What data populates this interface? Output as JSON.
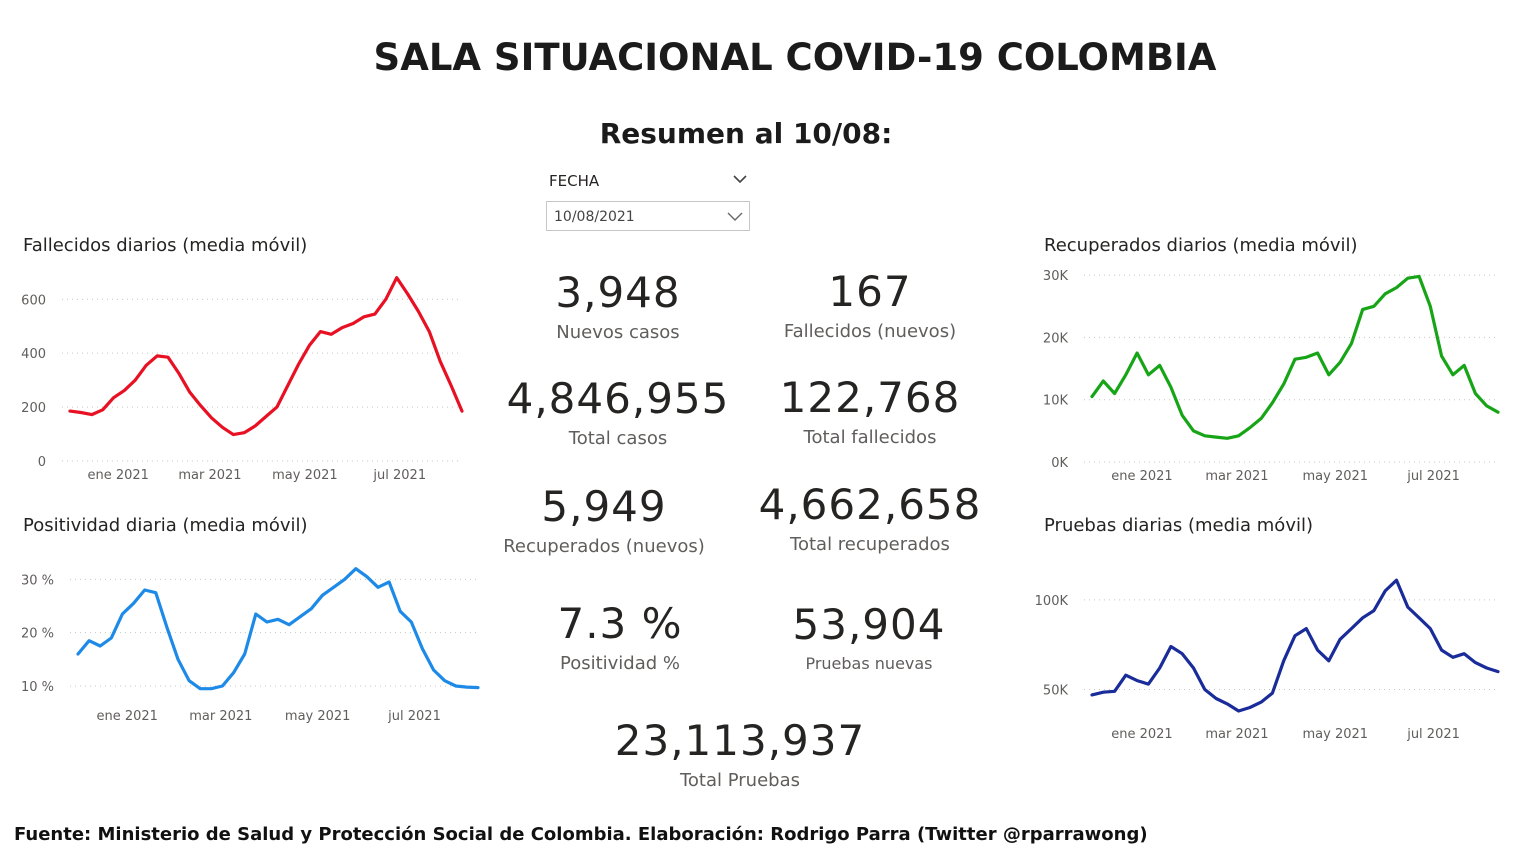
{
  "header": {
    "title": "SALA SITUACIONAL COVID-19 COLOMBIA",
    "subtitle": "Resumen al 10/08:"
  },
  "slicer": {
    "label": "FECHA",
    "value": "10/08/2021"
  },
  "kpis": [
    {
      "id": "nuevos-casos",
      "value": "3,948",
      "label": "Nuevos casos"
    },
    {
      "id": "fallecidos-nuevos",
      "value": "167",
      "label": "Fallecidos (nuevos)"
    },
    {
      "id": "total-casos",
      "value": "4,846,955",
      "label": "Total casos"
    },
    {
      "id": "total-fallecidos",
      "value": "122,768",
      "label": "Total fallecidos"
    },
    {
      "id": "recuperados-nuevos",
      "value": "5,949",
      "label": "Recuperados (nuevos)"
    },
    {
      "id": "total-recuperados",
      "value": "4,662,658",
      "label": "Total recuperados"
    },
    {
      "id": "positividad",
      "value": "7.3 %",
      "label": "Positividad %"
    },
    {
      "id": "pruebas-nuevas",
      "value": "53,904",
      "label": "Pruebas nuevas"
    },
    {
      "id": "total-pruebas",
      "value": "23,113,937",
      "label": "Total Pruebas"
    }
  ],
  "footer": {
    "text": "Fuente: Ministerio de Salud y Protección Social de Colombia. Elaboración: Rodrigo Parra (Twitter @rparrawong)"
  },
  "chart_data": [
    {
      "id": "fallecidos",
      "type": "line",
      "title": "Fallecidos diarios (media móvil)",
      "color": "#e81123",
      "x_unit": "date",
      "x_range": [
        "2020-12-01",
        "2021-08-10"
      ],
      "ylim": [
        0,
        690
      ],
      "yticks": [
        0,
        200,
        400,
        600
      ],
      "ytick_labels": [
        "0",
        "200",
        "400",
        "600"
      ],
      "grid": true,
      "xticks": [
        {
          "date": "2021-01-01",
          "label": "ene 2021"
        },
        {
          "date": "2021-03-01",
          "label": "mar 2021"
        },
        {
          "date": "2021-05-01",
          "label": "may 2021"
        },
        {
          "date": "2021-07-01",
          "label": "jul 2021"
        }
      ],
      "x": [
        "2020-12-01",
        "2020-12-08",
        "2020-12-15",
        "2020-12-22",
        "2020-12-29",
        "2021-01-05",
        "2021-01-12",
        "2021-01-19",
        "2021-01-26",
        "2021-02-02",
        "2021-02-09",
        "2021-02-16",
        "2021-02-23",
        "2021-03-02",
        "2021-03-09",
        "2021-03-16",
        "2021-03-23",
        "2021-03-30",
        "2021-04-06",
        "2021-04-13",
        "2021-04-20",
        "2021-04-27",
        "2021-05-04",
        "2021-05-11",
        "2021-05-18",
        "2021-05-25",
        "2021-06-01",
        "2021-06-08",
        "2021-06-15",
        "2021-06-22",
        "2021-06-29",
        "2021-07-06",
        "2021-07-13",
        "2021-07-20",
        "2021-07-27",
        "2021-08-03",
        "2021-08-10"
      ],
      "y": [
        185,
        180,
        172,
        190,
        235,
        262,
        300,
        355,
        390,
        385,
        325,
        255,
        205,
        160,
        125,
        98,
        105,
        130,
        165,
        200,
        280,
        360,
        430,
        480,
        470,
        495,
        510,
        535,
        545,
        600,
        680,
        620,
        555,
        480,
        370,
        280,
        185
      ]
    },
    {
      "id": "positividad",
      "type": "line",
      "title": "Positividad diaria (media móvil)",
      "color": "#1e8ae8",
      "x_unit": "date",
      "x_range": [
        "2020-12-01",
        "2021-08-10"
      ],
      "ylim": [
        7,
        34
      ],
      "yticks": [
        10,
        20,
        30
      ],
      "ytick_labels": [
        "10 %",
        "20 %",
        "30 %"
      ],
      "grid": true,
      "xticks": [
        {
          "date": "2021-01-01",
          "label": "ene 2021"
        },
        {
          "date": "2021-03-01",
          "label": "mar 2021"
        },
        {
          "date": "2021-05-01",
          "label": "may 2021"
        },
        {
          "date": "2021-07-01",
          "label": "jul 2021"
        }
      ],
      "x": [
        "2020-12-01",
        "2020-12-08",
        "2020-12-15",
        "2020-12-22",
        "2020-12-29",
        "2021-01-05",
        "2021-01-12",
        "2021-01-19",
        "2021-01-26",
        "2021-02-02",
        "2021-02-09",
        "2021-02-16",
        "2021-02-23",
        "2021-03-02",
        "2021-03-09",
        "2021-03-16",
        "2021-03-23",
        "2021-03-30",
        "2021-04-06",
        "2021-04-13",
        "2021-04-20",
        "2021-04-27",
        "2021-05-04",
        "2021-05-11",
        "2021-05-18",
        "2021-05-25",
        "2021-06-01",
        "2021-06-08",
        "2021-06-15",
        "2021-06-22",
        "2021-06-29",
        "2021-07-06",
        "2021-07-13",
        "2021-07-20",
        "2021-07-27",
        "2021-08-03",
        "2021-08-10"
      ],
      "y": [
        16,
        18.5,
        17.5,
        19,
        23.5,
        25.5,
        28,
        27.5,
        21,
        15,
        11,
        9.5,
        9.5,
        10,
        12.5,
        16,
        23.5,
        22,
        22.5,
        21.5,
        23,
        24.5,
        27,
        28.5,
        30,
        32,
        30.5,
        28.5,
        29.5,
        24,
        22,
        17,
        13,
        11,
        10,
        9.8,
        9.7
      ]
    },
    {
      "id": "recuperados",
      "type": "line",
      "title": "Recuperados diarios (media móvil)",
      "color": "#17a517",
      "x_unit": "date",
      "x_range": [
        "2020-12-01",
        "2021-08-10"
      ],
      "ylim": [
        0,
        30500
      ],
      "yticks": [
        0,
        10000,
        20000,
        30000
      ],
      "ytick_labels": [
        "0K",
        "10K",
        "20K",
        "30K"
      ],
      "grid": true,
      "xticks": [
        {
          "date": "2021-01-01",
          "label": "ene 2021"
        },
        {
          "date": "2021-03-01",
          "label": "mar 2021"
        },
        {
          "date": "2021-05-01",
          "label": "may 2021"
        },
        {
          "date": "2021-07-01",
          "label": "jul 2021"
        }
      ],
      "x": [
        "2020-12-01",
        "2020-12-08",
        "2020-12-15",
        "2020-12-22",
        "2020-12-29",
        "2021-01-05",
        "2021-01-12",
        "2021-01-19",
        "2021-01-26",
        "2021-02-02",
        "2021-02-09",
        "2021-02-16",
        "2021-02-23",
        "2021-03-02",
        "2021-03-09",
        "2021-03-16",
        "2021-03-23",
        "2021-03-30",
        "2021-04-06",
        "2021-04-13",
        "2021-04-20",
        "2021-04-27",
        "2021-05-04",
        "2021-05-11",
        "2021-05-18",
        "2021-05-25",
        "2021-06-01",
        "2021-06-08",
        "2021-06-15",
        "2021-06-22",
        "2021-06-29",
        "2021-07-06",
        "2021-07-13",
        "2021-07-20",
        "2021-07-27",
        "2021-08-03",
        "2021-08-10"
      ],
      "y": [
        10500,
        13000,
        11000,
        14000,
        17500,
        14000,
        15500,
        12000,
        7500,
        5000,
        4200,
        4000,
        3800,
        4200,
        5500,
        7000,
        9500,
        12500,
        16500,
        16800,
        17500,
        14000,
        16000,
        19000,
        24500,
        25000,
        27000,
        28000,
        29500,
        29800,
        25000,
        17000,
        14000,
        15500,
        11000,
        9000,
        8000
      ]
    },
    {
      "id": "pruebas",
      "type": "line",
      "title": "Pruebas diarias (media móvil)",
      "color": "#1a2c99",
      "x_unit": "date",
      "x_range": [
        "2020-12-01",
        "2021-08-10"
      ],
      "ylim": [
        33000,
        115000
      ],
      "yticks": [
        50000,
        100000
      ],
      "ytick_labels": [
        "50K",
        "100K"
      ],
      "grid": true,
      "xticks": [
        {
          "date": "2021-01-01",
          "label": "ene 2021"
        },
        {
          "date": "2021-03-01",
          "label": "mar 2021"
        },
        {
          "date": "2021-05-01",
          "label": "may 2021"
        },
        {
          "date": "2021-07-01",
          "label": "jul 2021"
        }
      ],
      "x": [
        "2020-12-01",
        "2020-12-08",
        "2020-12-15",
        "2020-12-22",
        "2020-12-29",
        "2021-01-05",
        "2021-01-12",
        "2021-01-19",
        "2021-01-26",
        "2021-02-02",
        "2021-02-09",
        "2021-02-16",
        "2021-02-23",
        "2021-03-02",
        "2021-03-09",
        "2021-03-16",
        "2021-03-23",
        "2021-03-30",
        "2021-04-06",
        "2021-04-13",
        "2021-04-20",
        "2021-04-27",
        "2021-05-04",
        "2021-05-11",
        "2021-05-18",
        "2021-05-25",
        "2021-06-01",
        "2021-06-08",
        "2021-06-15",
        "2021-06-22",
        "2021-06-29",
        "2021-07-06",
        "2021-07-13",
        "2021-07-20",
        "2021-07-27",
        "2021-08-03",
        "2021-08-10"
      ],
      "y": [
        47000,
        48500,
        49000,
        58000,
        55000,
        53000,
        62000,
        74000,
        70000,
        62000,
        50000,
        45000,
        42000,
        38000,
        40000,
        43000,
        48000,
        66000,
        80000,
        84000,
        72000,
        66000,
        78000,
        84000,
        90000,
        94000,
        105000,
        111000,
        96000,
        90000,
        84000,
        72000,
        68000,
        70000,
        65000,
        62000,
        60000
      ]
    }
  ]
}
